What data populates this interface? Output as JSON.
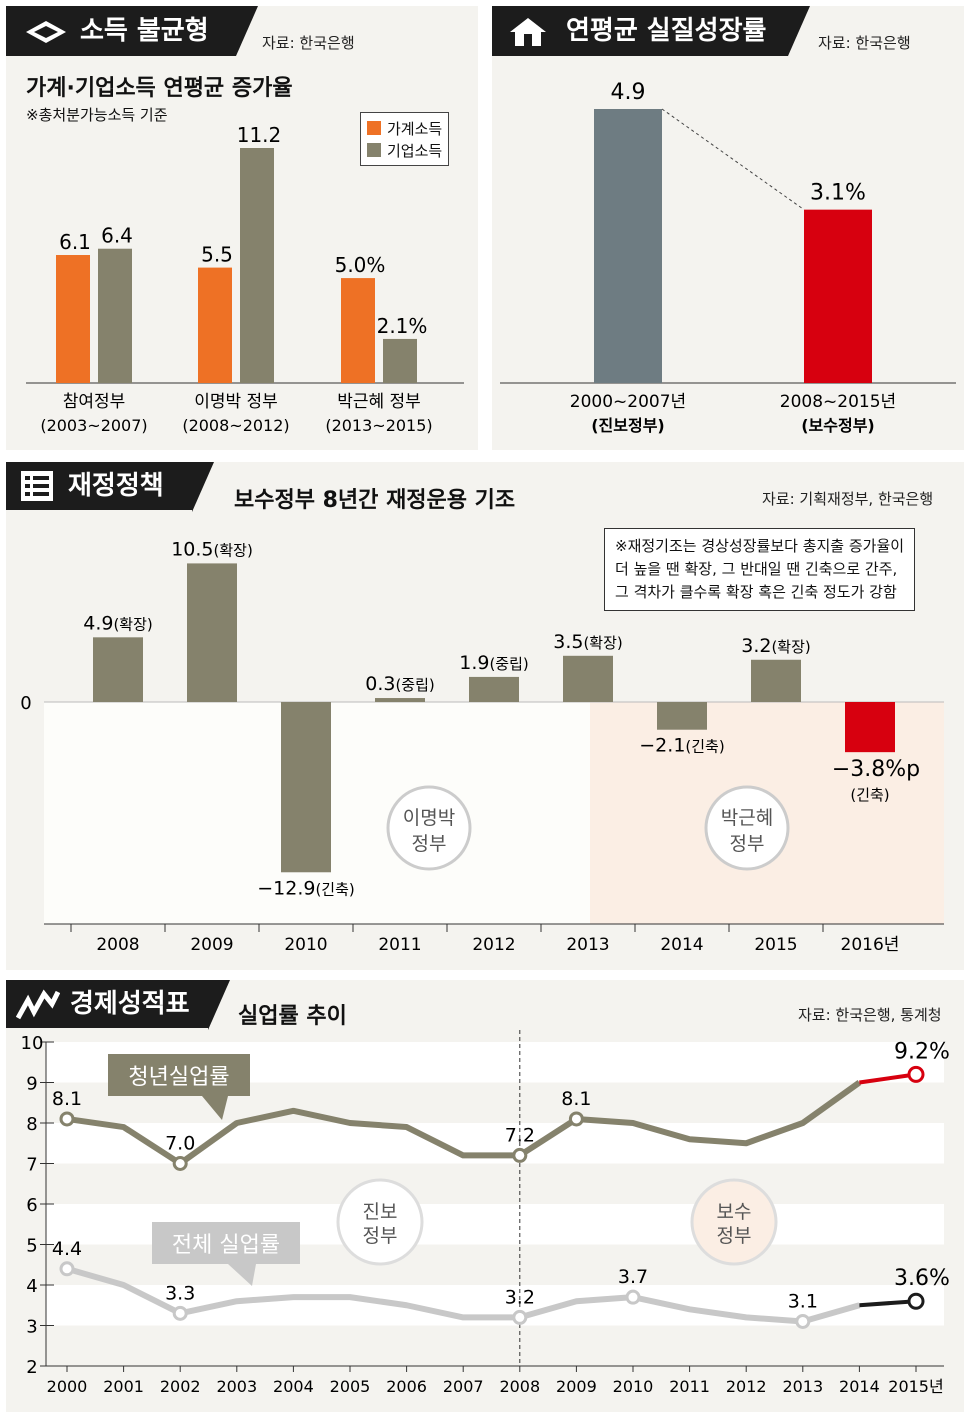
{
  "sections": {
    "income": {
      "title": "소득 불균형",
      "source": "자료: 한국은행",
      "subtitle": "가계·기업소득 연평균 증가율",
      "note": "※총처분가능소득 기준",
      "legend": [
        "가계소득",
        "기업소득"
      ]
    },
    "growth": {
      "title": "연평균 실질성장률",
      "source": "자료: 한국은행"
    },
    "fiscal": {
      "title": "재정정책",
      "subtitle": "보수정부 8년간 재정운용 기조",
      "source": "자료: 기획재정부, 한국은행",
      "note_lines": [
        "※재정기조는 경상성장률보다 총지출 증가율이",
        "더 높을 땐 확장, 그 반대일 땐 긴축으로 간주,",
        "그 격차가 클수록 확장 혹은 긴축 정도가 강함"
      ],
      "region_lee": [
        "이명박",
        "정부"
      ],
      "region_park": [
        "박근혜",
        "정부"
      ]
    },
    "economy": {
      "title": "경제성적표",
      "subtitle": "실업률 추이",
      "source": "자료: 한국은행, 통계청",
      "region_prog": [
        "진보",
        "정부"
      ],
      "region_cons": [
        "보수",
        "정부"
      ]
    }
  },
  "colors": {
    "household": "#ee7125",
    "corporate": "#85826c",
    "progressive": "#6e7c82",
    "conservative": "#d7000f",
    "dark": "#1c1c1c"
  },
  "chart_data": [
    {
      "type": "bar",
      "title": "가계·기업소득 연평균 증가율",
      "categories": [
        [
          "참여정부",
          "(2003~2007)"
        ],
        [
          "이명박 정부",
          "(2008~2012)"
        ],
        [
          "박근혜 정부",
          "(2013~2015)"
        ]
      ],
      "series": [
        {
          "name": "가계소득",
          "values": [
            6.1,
            5.5,
            5.0
          ],
          "labels": [
            "6.1",
            "5.5",
            "5.0%"
          ]
        },
        {
          "name": "기업소득",
          "values": [
            6.4,
            11.2,
            2.1
          ],
          "labels": [
            "6.4",
            "11.2",
            "2.1%"
          ]
        }
      ],
      "ylim": [
        0,
        12.5
      ]
    },
    {
      "type": "bar",
      "title": "연평균 실질성장률",
      "categories": [
        [
          "2000~2007년",
          "(진보정부)"
        ],
        [
          "2008~2015년",
          "(보수정부)"
        ]
      ],
      "values": [
        4.9,
        3.1
      ],
      "labels": [
        "4.9",
        "3.1%"
      ],
      "ylim": [
        0,
        6
      ]
    },
    {
      "type": "bar",
      "title": "보수정부 8년간 재정운용 기조",
      "categories": [
        "2008",
        "2009",
        "2010",
        "2011",
        "2012",
        "2013",
        "2014",
        "2015",
        "2016년"
      ],
      "values": [
        4.9,
        10.5,
        -12.9,
        0.3,
        1.9,
        3.5,
        -2.1,
        3.2,
        -3.8
      ],
      "labels": [
        "4.9",
        "10.5",
        "−12.9",
        "0.3",
        "1.9",
        "3.5",
        "−2.1",
        "3.2",
        "−3.8%p"
      ],
      "tags": [
        "(확장)",
        "(확장)",
        "(긴축)",
        "(중립)",
        "(중립)",
        "(확장)",
        "(긴축)",
        "(확장)",
        "(긴축)"
      ],
      "zero_label": "0"
    },
    {
      "type": "line",
      "title": "실업률 추이",
      "x": [
        "2000",
        "2001",
        "2002",
        "2003",
        "2004",
        "2005",
        "2006",
        "2007",
        "2008",
        "2009",
        "2010",
        "2011",
        "2012",
        "2013",
        "2014",
        "2015년"
      ],
      "ylim": [
        2,
        10
      ],
      "yticks": [
        "2",
        "3",
        "4",
        "5",
        "6",
        "7",
        "8",
        "9",
        "10"
      ],
      "series": [
        {
          "name": "청년실업률",
          "values": [
            8.1,
            7.9,
            7.0,
            8.0,
            8.3,
            8.0,
            7.9,
            7.2,
            7.2,
            8.1,
            8.0,
            7.6,
            7.5,
            8.0,
            9.0,
            9.2
          ],
          "labeled": {
            "0": "8.1",
            "2": "7.0",
            "8": "7.2",
            "9": "8.1",
            "15": "9.2%"
          }
        },
        {
          "name": "전체 실업률",
          "values": [
            4.4,
            4.0,
            3.3,
            3.6,
            3.7,
            3.7,
            3.5,
            3.2,
            3.2,
            3.6,
            3.7,
            3.4,
            3.2,
            3.1,
            3.5,
            3.6
          ],
          "labeled": {
            "0": "4.4",
            "2": "3.3",
            "8": "3.2",
            "10": "3.7",
            "13": "3.1",
            "15": "3.6%"
          }
        }
      ]
    }
  ]
}
